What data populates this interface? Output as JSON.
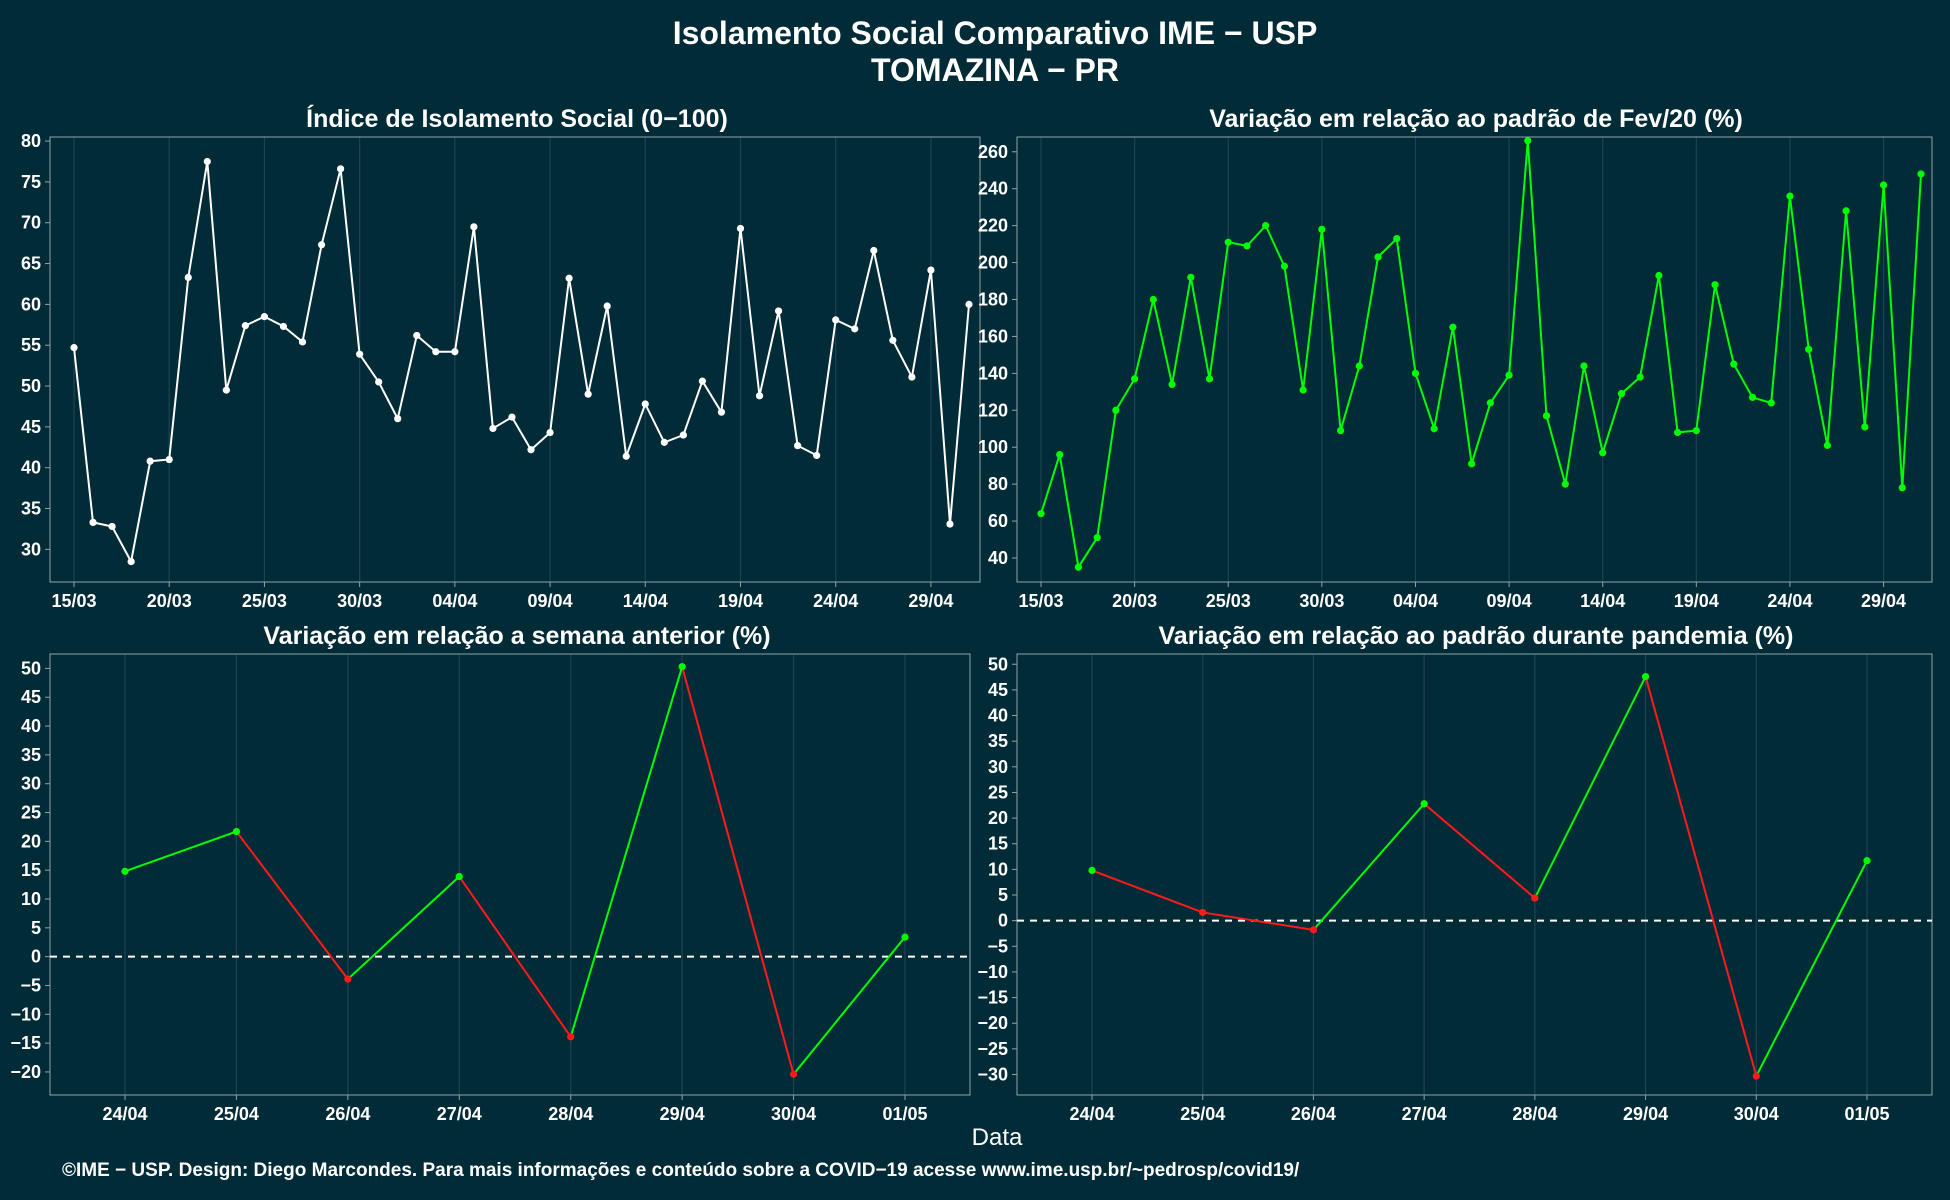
{
  "title": "Isolamento Social Comparativo IME − USP",
  "subtitle": "TOMAZINA − PR",
  "xlabel": "Data",
  "footer": "©IME − USP. Design: Diego Marcondes. Para mais informações e conteúdo sobre a COVID−19 acesse www.ime.usp.br/~pedrosp/covid19/",
  "colors": {
    "background": "#022b38",
    "white": "#ffffff",
    "green": "#00ff00",
    "red": "#ff1a1a",
    "grid": "#1c4450"
  },
  "chart_data": [
    {
      "type": "line",
      "title": "Índice de Isolamento Social (0−100)",
      "xlabel": "",
      "ylabel": "",
      "x_ticks": [
        "15/03",
        "20/03",
        "25/03",
        "30/03",
        "04/04",
        "09/04",
        "14/04",
        "19/04",
        "24/04",
        "29/04"
      ],
      "y_ticks": [
        "30",
        "35",
        "40",
        "45",
        "50",
        "55",
        "60",
        "65",
        "70",
        "75",
        "80"
      ],
      "ylim": [
        26,
        80.5
      ],
      "series": [
        {
          "values": [
            54.7,
            33.3,
            32.8,
            28.5,
            40.8,
            41,
            63.3,
            77.5,
            49.5,
            57.4,
            58.5,
            57.3,
            55.4,
            67.3,
            76.6,
            53.9,
            50.5,
            46,
            56.2,
            54.2,
            54.2,
            69.5,
            44.8,
            46.2,
            42.2,
            44.3,
            63.2,
            49,
            59.8,
            41.4,
            47.8,
            43.1,
            44,
            50.6,
            46.8,
            69.3,
            48.8,
            59.2,
            42.7,
            41.5,
            58.1,
            57,
            66.6,
            55.6,
            51.1,
            64.2,
            33.1,
            60
          ]
        }
      ]
    },
    {
      "type": "line",
      "title": "Variação em relação ao padrão de Fev/20 (%)",
      "xlabel": "",
      "ylabel": "",
      "x_ticks": [
        "15/03",
        "20/03",
        "25/03",
        "30/03",
        "04/04",
        "09/04",
        "14/04",
        "19/04",
        "24/04",
        "29/04"
      ],
      "y_ticks": [
        "40",
        "60",
        "80",
        "100",
        "120",
        "140",
        "160",
        "180",
        "200",
        "220",
        "240",
        "260"
      ],
      "ylim": [
        27,
        268
      ],
      "series": [
        {
          "values": [
            64,
            96,
            35,
            51,
            120,
            137,
            180,
            134,
            192,
            137,
            211,
            209,
            220,
            198,
            131,
            218,
            109,
            144,
            203,
            213,
            140,
            110,
            165,
            91,
            124,
            139,
            266,
            117,
            80,
            144,
            97,
            129,
            138,
            193,
            108,
            109,
            188,
            145,
            127,
            124,
            236,
            153,
            101,
            228,
            111,
            242,
            78,
            248
          ]
        }
      ]
    },
    {
      "type": "line",
      "title": "Variação em relação a semana anterior (%)",
      "xlabel": "",
      "ylabel": "",
      "x": [
        "24/04",
        "25/04",
        "26/04",
        "27/04",
        "28/04",
        "29/04",
        "30/04",
        "01/05"
      ],
      "y_ticks": [
        "−20",
        "−15",
        "−10",
        "−5",
        "0",
        "5",
        "10",
        "15",
        "20",
        "25",
        "30",
        "35",
        "40",
        "45",
        "50"
      ],
      "ylim": [
        -24,
        52.5
      ],
      "reference_line": 0,
      "series": [
        {
          "values": [
            14.8,
            21.7,
            -3.9,
            13.9,
            -13.9,
            50.3,
            -20.4,
            3.4
          ]
        }
      ]
    },
    {
      "type": "line",
      "title": "Variação em relação ao padrão durante pandemia (%)",
      "xlabel": "",
      "ylabel": "",
      "x": [
        "24/04",
        "25/04",
        "26/04",
        "27/04",
        "28/04",
        "29/04",
        "30/04",
        "01/05"
      ],
      "y_ticks": [
        "−30",
        "−25",
        "−20",
        "−15",
        "−10",
        "−5",
        "0",
        "5",
        "10",
        "15",
        "20",
        "25",
        "30",
        "35",
        "40",
        "45",
        "50"
      ],
      "ylim": [
        -34,
        52
      ],
      "reference_line": 0,
      "series": [
        {
          "values": [
            9.8,
            1.6,
            -1.8,
            22.8,
            4.4,
            47.6,
            -30.3,
            11.7
          ]
        }
      ]
    }
  ]
}
